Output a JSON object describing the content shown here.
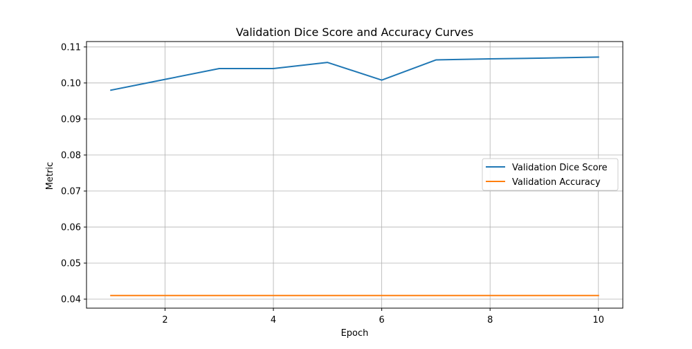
{
  "chart_data": {
    "type": "line",
    "title": "Validation Dice Score and Accuracy Curves",
    "xlabel": "Epoch",
    "ylabel": "Metric",
    "x": [
      1,
      2,
      3,
      4,
      5,
      6,
      7,
      8,
      9,
      10
    ],
    "xlim": [
      0.55,
      10.45
    ],
    "ylim": [
      0.0375,
      0.1115
    ],
    "xticks": [
      2,
      4,
      6,
      8,
      10
    ],
    "xtick_labels": [
      "2",
      "4",
      "6",
      "8",
      "10"
    ],
    "yticks": [
      0.04,
      0.05,
      0.06,
      0.07,
      0.08,
      0.09,
      0.1,
      0.11
    ],
    "ytick_labels": [
      "0.04",
      "0.05",
      "0.06",
      "0.07",
      "0.08",
      "0.09",
      "0.10",
      "0.11"
    ],
    "grid": true,
    "legend_position": "center-right",
    "series": [
      {
        "name": "Validation Dice Score",
        "color": "#1f77b4",
        "values": [
          0.098,
          0.101,
          0.104,
          0.104,
          0.1057,
          0.1008,
          0.1064,
          0.1067,
          0.1069,
          0.1072
        ]
      },
      {
        "name": "Validation Accuracy",
        "color": "#ff7f0e",
        "values": [
          0.041,
          0.041,
          0.041,
          0.041,
          0.041,
          0.041,
          0.041,
          0.041,
          0.041,
          0.041
        ]
      }
    ]
  }
}
